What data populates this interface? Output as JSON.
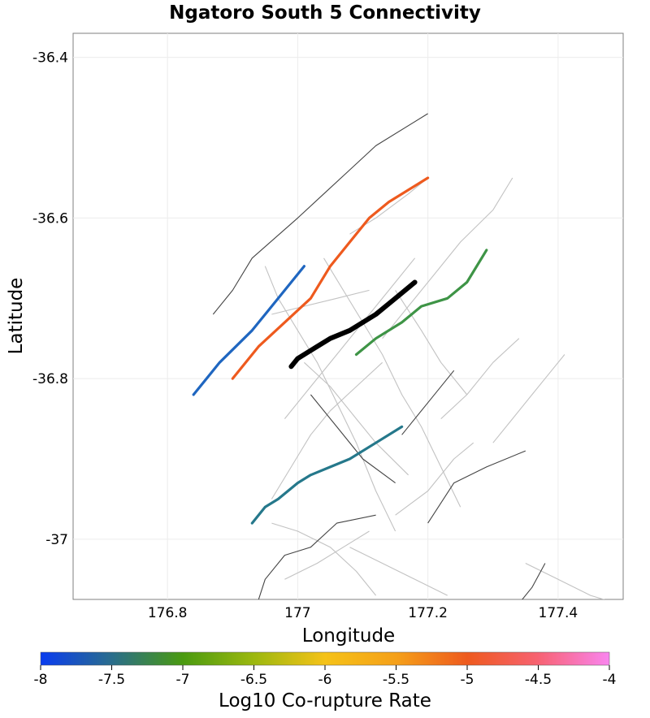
{
  "title": "Ngatoro South 5 Connectivity",
  "x_axis": {
    "label": "Longitude",
    "ticks": [
      {
        "value": 176.8,
        "label": "176.8"
      },
      {
        "value": 177.0,
        "label": "177"
      },
      {
        "value": 177.2,
        "label": "177.2"
      },
      {
        "value": 177.4,
        "label": "177.4"
      }
    ],
    "range": [
      176.655,
      177.5
    ]
  },
  "y_axis": {
    "label": "Latitude",
    "ticks": [
      {
        "value": -36.4,
        "label": "-36.4"
      },
      {
        "value": -36.6,
        "label": "-36.6"
      },
      {
        "value": -36.8,
        "label": "-36.8"
      },
      {
        "value": -37.0,
        "label": "-37"
      }
    ],
    "range": [
      -37.075,
      -36.37
    ]
  },
  "colorbar": {
    "label": "Log10 Co-rupture Rate",
    "range": [
      -8,
      -4
    ],
    "ticks": [
      {
        "value": -8,
        "label": "-8"
      },
      {
        "value": -7.5,
        "label": "-7.5"
      },
      {
        "value": -7,
        "label": "-7"
      },
      {
        "value": -6.5,
        "label": "-6.5"
      },
      {
        "value": -6,
        "label": "-6"
      },
      {
        "value": -5.5,
        "label": "-5.5"
      },
      {
        "value": -5,
        "label": "-5"
      },
      {
        "value": -4.5,
        "label": "-4.5"
      },
      {
        "value": -4,
        "label": "-4"
      }
    ],
    "stops": [
      {
        "value": -8,
        "color": "#0a3cf0"
      },
      {
        "value": -7.5,
        "color": "#2a6d8c"
      },
      {
        "value": -7,
        "color": "#4a9a10"
      },
      {
        "value": -6.5,
        "color": "#9cb80f"
      },
      {
        "value": -6,
        "color": "#f5c218"
      },
      {
        "value": -5.5,
        "color": "#f5a019"
      },
      {
        "value": -5,
        "color": "#ee5a1e"
      },
      {
        "value": -4.5,
        "color": "#f76272"
      },
      {
        "value": -4,
        "color": "#f985ef"
      }
    ]
  },
  "map_data": {
    "fault_outlines": [
      [
        [
          176.95,
          -36.66
        ],
        [
          176.97,
          -36.7
        ],
        [
          177.0,
          -36.74
        ],
        [
          177.03,
          -36.78
        ],
        [
          177.06,
          -36.83
        ],
        [
          177.09,
          -36.88
        ],
        [
          177.12,
          -36.94
        ],
        [
          177.15,
          -36.99
        ]
      ],
      [
        [
          177.04,
          -36.65
        ],
        [
          177.07,
          -36.69
        ],
        [
          177.1,
          -36.73
        ],
        [
          177.13,
          -36.77
        ],
        [
          177.16,
          -36.82
        ],
        [
          177.19,
          -36.86
        ],
        [
          177.22,
          -36.91
        ],
        [
          177.25,
          -36.96
        ]
      ],
      [
        [
          177.01,
          -36.78
        ],
        [
          177.05,
          -36.81
        ],
        [
          177.09,
          -36.85
        ],
        [
          177.12,
          -36.88
        ],
        [
          177.17,
          -36.92
        ]
      ],
      [
        [
          176.96,
          -36.95
        ],
        [
          176.99,
          -36.91
        ],
        [
          177.02,
          -36.87
        ],
        [
          177.05,
          -36.84
        ],
        [
          177.09,
          -36.81
        ],
        [
          177.13,
          -36.78
        ]
      ],
      [
        [
          176.98,
          -36.85
        ],
        [
          177.02,
          -36.81
        ],
        [
          177.06,
          -36.77
        ],
        [
          177.1,
          -36.73
        ],
        [
          177.14,
          -36.69
        ],
        [
          177.18,
          -36.65
        ]
      ],
      [
        [
          177.13,
          -36.75
        ],
        [
          177.17,
          -36.71
        ],
        [
          177.21,
          -36.67
        ],
        [
          177.25,
          -36.63
        ],
        [
          177.3,
          -36.59
        ],
        [
          177.33,
          -36.55
        ]
      ],
      [
        [
          177.22,
          -36.85
        ],
        [
          177.26,
          -36.82
        ],
        [
          177.3,
          -36.78
        ],
        [
          177.34,
          -36.75
        ]
      ],
      [
        [
          177.3,
          -36.88
        ],
        [
          177.33,
          -36.85
        ],
        [
          177.36,
          -36.82
        ],
        [
          177.39,
          -36.79
        ],
        [
          177.41,
          -36.77
        ]
      ],
      [
        [
          177.15,
          -36.97
        ],
        [
          177.2,
          -36.94
        ],
        [
          177.24,
          -36.9
        ],
        [
          177.27,
          -36.88
        ]
      ],
      [
        [
          176.96,
          -36.98
        ],
        [
          177.0,
          -36.99
        ],
        [
          177.05,
          -37.01
        ],
        [
          177.09,
          -37.04
        ],
        [
          177.12,
          -37.07
        ]
      ],
      [
        [
          176.98,
          -37.05
        ],
        [
          177.03,
          -37.03
        ],
        [
          177.07,
          -37.01
        ],
        [
          177.11,
          -36.99
        ]
      ],
      [
        [
          177.08,
          -37.01
        ],
        [
          177.13,
          -37.03
        ],
        [
          177.18,
          -37.05
        ],
        [
          177.23,
          -37.07
        ]
      ],
      [
        [
          177.35,
          -37.03
        ],
        [
          177.4,
          -37.05
        ],
        [
          177.45,
          -37.07
        ],
        [
          177.49,
          -37.08
        ]
      ],
      [
        [
          177.15,
          -36.69
        ],
        [
          177.19,
          -36.74
        ],
        [
          177.22,
          -36.78
        ],
        [
          177.26,
          -36.82
        ]
      ],
      [
        [
          176.96,
          -36.72
        ],
        [
          177.01,
          -36.71
        ],
        [
          177.06,
          -36.7
        ],
        [
          177.11,
          -36.69
        ]
      ],
      [
        [
          177.08,
          -36.62
        ],
        [
          177.12,
          -36.6
        ],
        [
          177.17,
          -36.57
        ],
        [
          177.2,
          -36.55
        ]
      ]
    ],
    "dark_traces": [
      [
        [
          176.87,
          -36.72
        ],
        [
          176.9,
          -36.69
        ],
        [
          176.93,
          -36.65
        ],
        [
          177.0,
          -36.6
        ],
        [
          177.04,
          -36.57
        ],
        [
          177.08,
          -36.54
        ],
        [
          177.12,
          -36.51
        ],
        [
          177.2,
          -36.47
        ]
      ],
      [
        [
          177.02,
          -36.82
        ],
        [
          177.06,
          -36.86
        ],
        [
          177.1,
          -36.9
        ],
        [
          177.15,
          -36.93
        ]
      ],
      [
        [
          177.16,
          -36.87
        ],
        [
          177.2,
          -36.83
        ],
        [
          177.24,
          -36.79
        ]
      ],
      [
        [
          177.2,
          -36.98
        ],
        [
          177.24,
          -36.93
        ],
        [
          177.29,
          -36.91
        ],
        [
          177.35,
          -36.89
        ]
      ],
      [
        [
          176.93,
          -37.1
        ],
        [
          176.95,
          -37.05
        ],
        [
          176.98,
          -37.02
        ],
        [
          177.02,
          -37.01
        ],
        [
          177.06,
          -36.98
        ],
        [
          177.12,
          -36.97
        ]
      ],
      [
        [
          177.32,
          -37.1
        ],
        [
          177.36,
          -37.06
        ],
        [
          177.38,
          -37.03
        ]
      ]
    ],
    "colored_ruptures": [
      {
        "name": "ngatoro-south-5-trace",
        "log10_rate": null,
        "color": "#000000",
        "points": [
          [
            176.99,
            -36.785
          ],
          [
            177.0,
            -36.775
          ],
          [
            177.03,
            -36.76
          ],
          [
            177.05,
            -36.75
          ],
          [
            177.08,
            -36.74
          ],
          [
            177.12,
            -36.72
          ],
          [
            177.15,
            -36.7
          ],
          [
            177.18,
            -36.68
          ]
        ]
      },
      {
        "name": "orange-rupture",
        "log10_rate": -5.0,
        "color": "#ee5a1e",
        "points": [
          [
            176.9,
            -36.8
          ],
          [
            176.94,
            -36.76
          ],
          [
            176.98,
            -36.73
          ],
          [
            177.02,
            -36.7
          ],
          [
            177.05,
            -36.66
          ],
          [
            177.08,
            -36.63
          ],
          [
            177.11,
            -36.6
          ],
          [
            177.14,
            -36.58
          ],
          [
            177.2,
            -36.55
          ]
        ]
      },
      {
        "name": "blue-rupture",
        "log10_rate": -7.8,
        "color": "#1f66c0",
        "points": [
          [
            176.84,
            -36.82
          ],
          [
            176.88,
            -36.78
          ],
          [
            176.93,
            -36.74
          ],
          [
            176.97,
            -36.7
          ],
          [
            177.01,
            -36.66
          ]
        ]
      },
      {
        "name": "green-rupture",
        "log10_rate": -7.0,
        "color": "#3e9446",
        "points": [
          [
            177.09,
            -36.77
          ],
          [
            177.12,
            -36.75
          ],
          [
            177.16,
            -36.73
          ],
          [
            177.19,
            -36.71
          ],
          [
            177.23,
            -36.7
          ],
          [
            177.26,
            -36.68
          ],
          [
            177.29,
            -36.64
          ]
        ]
      },
      {
        "name": "teal-rupture",
        "log10_rate": -7.5,
        "color": "#25788b",
        "points": [
          [
            176.93,
            -36.98
          ],
          [
            176.95,
            -36.96
          ],
          [
            176.97,
            -36.95
          ],
          [
            177.0,
            -36.93
          ],
          [
            177.02,
            -36.92
          ],
          [
            177.05,
            -36.91
          ],
          [
            177.08,
            -36.9
          ],
          [
            177.12,
            -36.88
          ],
          [
            177.16,
            -36.86
          ]
        ]
      }
    ]
  }
}
